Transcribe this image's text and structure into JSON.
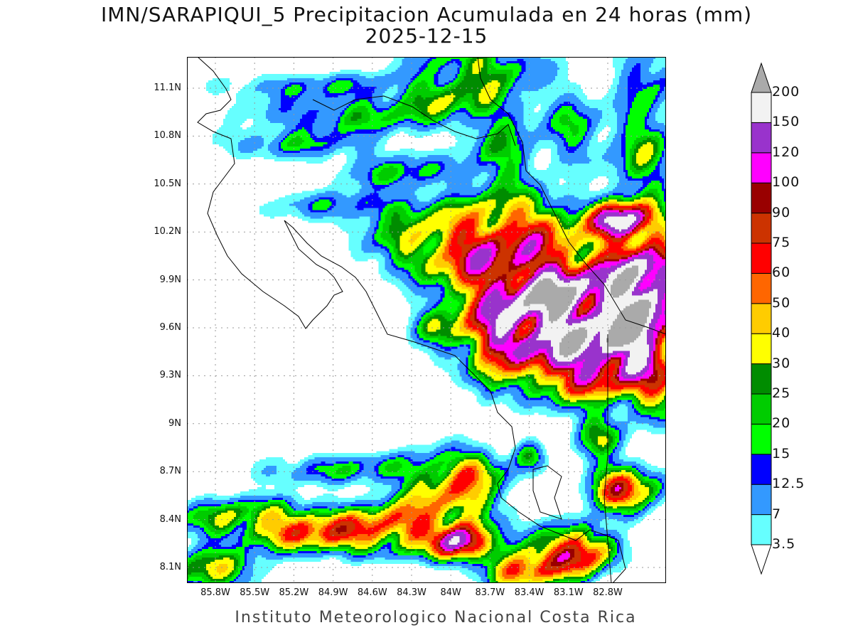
{
  "title": {
    "line1": "IMN/SARAPIQUI_5 Precipitacion Acumulada en 24 horas (mm)",
    "line2": "2025-12-15"
  },
  "map": {
    "lat_labels": [
      "11.1N",
      "10.8N",
      "10.5N",
      "10.2N",
      "9.9N",
      "9.6N",
      "9.3N",
      "9N",
      "8.7N",
      "8.4N",
      "8.1N"
    ],
    "lon_labels": [
      "85.8W",
      "85.5W",
      "85.2W",
      "84.9W",
      "84.6W",
      "84.3W",
      "84W",
      "83.7W",
      "83.4W",
      "83.1W",
      "82.8W"
    ],
    "grid": "dotted"
  },
  "colorbar": {
    "levels": [
      "3.5",
      "7",
      "12.5",
      "15",
      "20",
      "25",
      "30",
      "40",
      "50",
      "60",
      "75",
      "90",
      "100",
      "120",
      "150",
      "200"
    ],
    "colors": [
      "#66ffff",
      "#3399ff",
      "#0000ff",
      "#00ff00",
      "#00cc00",
      "#008c00",
      "#ffff00",
      "#ffcc00",
      "#ff6600",
      "#ff0000",
      "#cc3300",
      "#990000",
      "#ff00ff",
      "#9933cc",
      "#f2f2f2"
    ],
    "over_color": "#aaaaaa",
    "under_color": "#ffffff"
  },
  "footer": "Instituto Meteorologico Nacional Costa Rica"
}
